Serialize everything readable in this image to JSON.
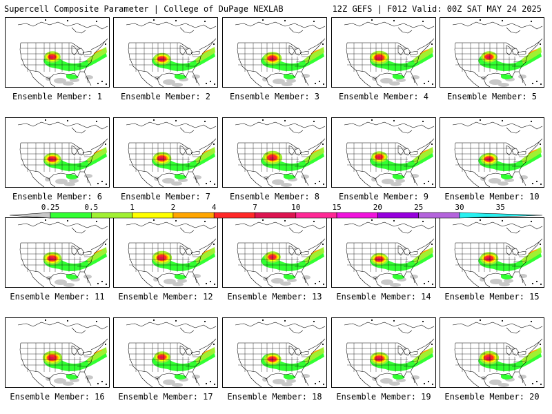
{
  "header": {
    "left_title": "Supercell Composite Parameter | College of DuPage NEXLAB",
    "right_title": "12Z GEFS | F012 Valid: 00Z SAT MAY 24 2025"
  },
  "panels": [
    {
      "label": "Ensemble Member: 1"
    },
    {
      "label": "Ensemble Member: 2"
    },
    {
      "label": "Ensemble Member: 3"
    },
    {
      "label": "Ensemble Member: 4"
    },
    {
      "label": "Ensemble Member: 5"
    },
    {
      "label": "Ensemble Member: 6"
    },
    {
      "label": "Ensemble Member: 7"
    },
    {
      "label": "Ensemble Member: 8"
    },
    {
      "label": "Ensemble Member: 9"
    },
    {
      "label": "Ensemble Member: 10"
    },
    {
      "label": "Ensemble Member: 11"
    },
    {
      "label": "Ensemble Member: 12"
    },
    {
      "label": "Ensemble Member: 13"
    },
    {
      "label": "Ensemble Member: 14"
    },
    {
      "label": "Ensemble Member: 15"
    },
    {
      "label": "Ensemble Member: 16"
    },
    {
      "label": "Ensemble Member: 17"
    },
    {
      "label": "Ensemble Member: 18"
    },
    {
      "label": "Ensemble Member: 19"
    },
    {
      "label": "Ensemble Member: 20"
    }
  ],
  "colorbar": {
    "ticks": [
      "0.25",
      "0.5",
      "1",
      "2",
      "4",
      "7",
      "10",
      "15",
      "20",
      "25",
      "30",
      "35"
    ],
    "colors": [
      "#c8c8c8",
      "#32ff32",
      "#a0f032",
      "#ffff00",
      "#ffa500",
      "#ff2828",
      "#dc1450",
      "#ff2896",
      "#f014dc",
      "#9600dc",
      "#b464dc",
      "#28f0f0"
    ]
  },
  "map_colors": {
    "gray": "#c8c8c8",
    "green": "#32ff32",
    "lime": "#a0f032",
    "yellow": "#ffff00",
    "orange": "#ffa500",
    "red": "#ff2828",
    "crimson": "#dc1450"
  }
}
